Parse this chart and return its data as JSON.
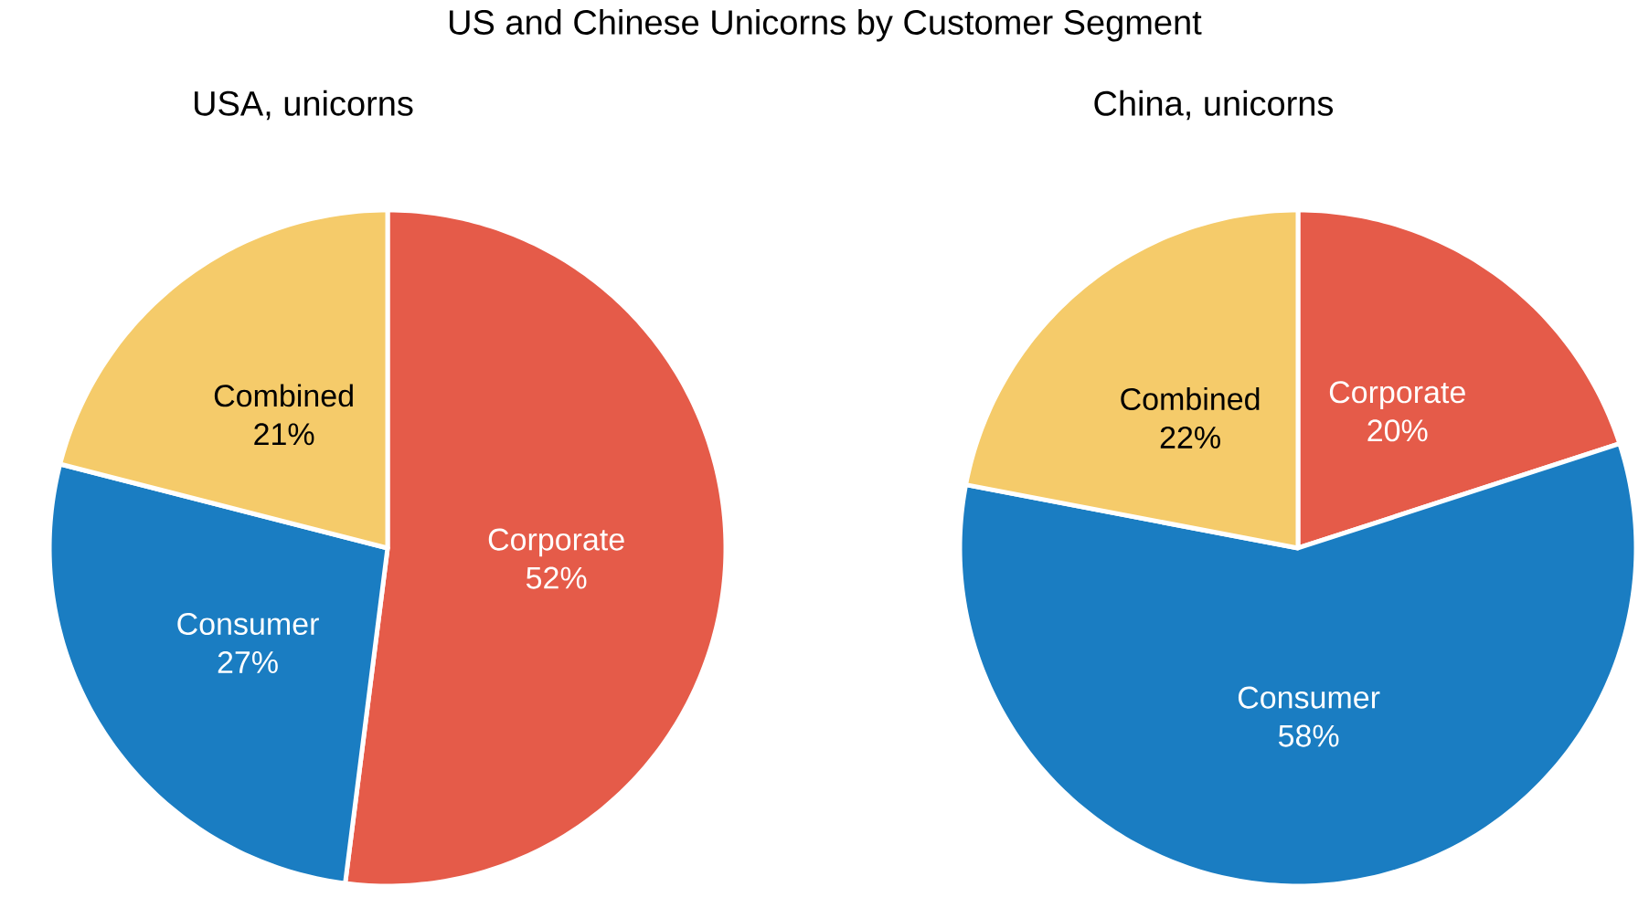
{
  "chart_data": [
    {
      "type": "pie",
      "title": "US and Chinese Unicorns by Customer Segment",
      "subtitle": "USA, unicorns",
      "categories": [
        "Corporate",
        "Consumer",
        "Combined"
      ],
      "values": [
        52,
        27,
        21
      ],
      "value_labels": [
        "52%",
        "27%",
        "21%"
      ],
      "colors": [
        "#e55b49",
        "#1a7dc2",
        "#f5cb6a"
      ]
    },
    {
      "type": "pie",
      "subtitle": "China, unicorns",
      "categories": [
        "Corporate",
        "Consumer",
        "Combined"
      ],
      "values": [
        20,
        58,
        22
      ],
      "value_labels": [
        "20%",
        "58%",
        "22%"
      ],
      "colors": [
        "#e55b49",
        "#1a7dc2",
        "#f5cb6a"
      ]
    }
  ]
}
